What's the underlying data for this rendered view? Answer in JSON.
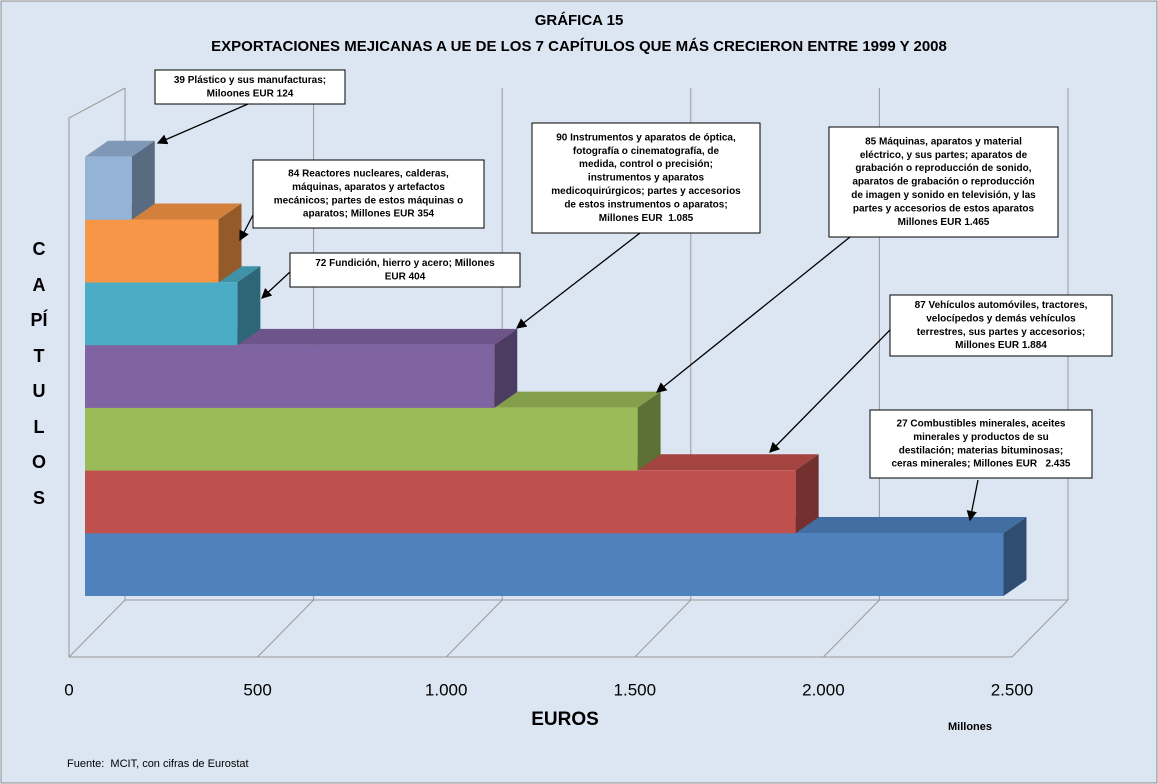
{
  "chart_data": {
    "type": "bar3d_horizontal",
    "title": "GRÁFICA 15",
    "subtitle": "EXPORTACIONES MEJICANAS A UE DE LOS 7 CAPÍTULOS QUE MÁS CRECIERON ENTRE 1999 Y 2008",
    "x_label": "EUROS",
    "x_unit": "Millones",
    "y_label": "CAPÍTULOS",
    "source": "Fuente:  MCIT, con cifras de Eurostat",
    "values": [
      2435,
      1884,
      1465,
      1085,
      404,
      354,
      124
    ],
    "value_labels": [
      [
        "27 Combustibles minerales, aceites",
        "minerales y productos de su",
        "destilación; materias bituminosas;",
        "ceras minerales; Millones EUR   2.435"
      ],
      [
        "87 Vehículos automóviles, tractores,",
        "velocípedos y demás vehículos",
        "terrestres, sus partes y accesorios;",
        "Millones EUR 1.884"
      ],
      [
        "85 Máquinas, aparatos y material",
        "eléctrico, y sus partes; aparatos de",
        "grabación o reproducción de sonido,",
        "aparatos de grabación o reproducción",
        "de imagen y sonido en televisión, y las",
        "partes y accesorios de estos aparatos",
        "Millones EUR 1.465"
      ],
      [
        "90 Instrumentos y aparatos de óptica,",
        "fotografía o cinematografía, de",
        "medida, control o precisión;",
        "instrumentos y aparatos",
        "medicoquirúrgicos; partes y accesorios",
        "de estos instrumentos o aparatos;",
        "Millones EUR  1.085"
      ],
      [
        "72 Fundición, hierro y acero; Millones",
        "EUR 404"
      ],
      [
        "84 Reactores nucleares, calderas,",
        "máquinas, aparatos y artefactos",
        "mecánicos; partes de estos máquinas o",
        "aparatos; Millones EUR 354"
      ],
      [
        "39 Plástico y sus manufacturas;",
        "Miloones EUR 124"
      ]
    ],
    "colors": [
      "#4f81bd",
      "#c0504d",
      "#9bbb59",
      "#8064a2",
      "#4bacc6",
      "#f79646",
      "#95b3d7"
    ],
    "xlim": [
      0,
      2500
    ],
    "xticks": [
      0,
      500,
      {
        "value": 1000,
        "label": "1.000"
      },
      {
        "value": 1500,
        "label": "1.500"
      },
      {
        "value": 2000,
        "label": "2.000"
      },
      {
        "value": 2500,
        "label": "2.500"
      }
    ],
    "grid": true
  }
}
